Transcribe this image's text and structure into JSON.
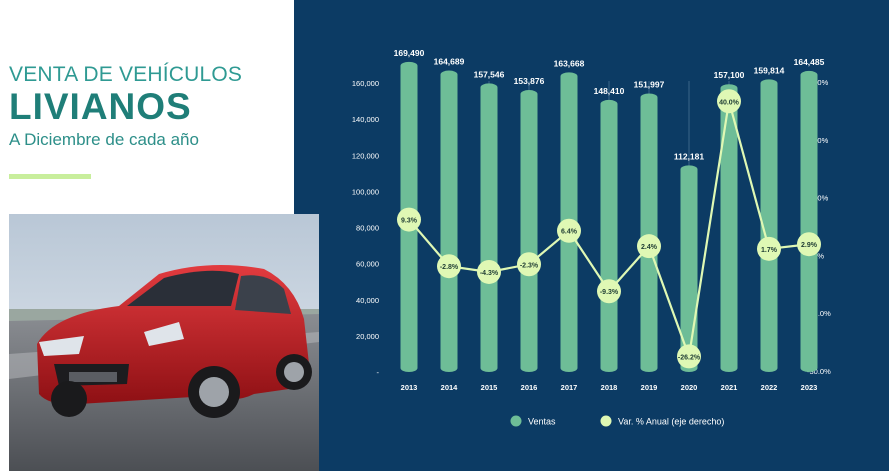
{
  "header": {
    "title_line1": "VENTA DE VEHÍCULOS",
    "title_line2": "LIVIANOS",
    "subtitle": "A Diciembre de cada año"
  },
  "colors": {
    "panel_bg": "#0c3b64",
    "title_teal": "#2f9a93",
    "title_dark_teal": "#1f7e78",
    "subtitle_teal": "#2d8f89",
    "accent": "#c8ee9c",
    "bar": "#6ebd97",
    "line": "#dff8b4",
    "grid": "#3a6488",
    "text": "#ffffff"
  },
  "photo": {
    "icon": "red-hatchback-car-photo"
  },
  "chart_data": {
    "type": "bar",
    "categories": [
      "2013",
      "2014",
      "2015",
      "2016",
      "2017",
      "2018",
      "2019",
      "2020",
      "2021",
      "2022",
      "2023"
    ],
    "series": [
      {
        "name": "Ventas",
        "type": "bar",
        "axis": "left",
        "values": [
          169490,
          164689,
          157546,
          153876,
          163668,
          148410,
          151997,
          112181,
          157100,
          159814,
          164485
        ],
        "labels": [
          "169,490",
          "164,689",
          "157,546",
          "153,876",
          "163,668",
          "148,410",
          "151,997",
          "112,181",
          "157,100",
          "159,814",
          "164,485"
        ]
      },
      {
        "name": "Var. % Anual (eje derecho)",
        "type": "line",
        "axis": "right",
        "values": [
          9.3,
          -2.8,
          -4.3,
          -2.3,
          6.4,
          -9.3,
          2.4,
          -26.2,
          40.0,
          1.7,
          2.9
        ],
        "labels": [
          "9.3%",
          "-2.8%",
          "-4.3%",
          "-2.3%",
          "6.4%",
          "-9.3%",
          "2.4%",
          "-26.2%",
          "40.0%",
          "1.7%",
          "2.9%"
        ]
      }
    ],
    "y_left": {
      "range": [
        0,
        160000
      ],
      "ticks": [
        0,
        20000,
        40000,
        60000,
        80000,
        100000,
        120000,
        140000,
        160000
      ],
      "tick_labels": [
        "-",
        "20,000",
        "40,000",
        "60,000",
        "80,000",
        "100,000",
        "120,000",
        "140,000",
        "160,000"
      ]
    },
    "y_right": {
      "range": [
        -30,
        45
      ],
      "ticks": [
        -30,
        -15,
        0,
        15,
        30,
        45
      ],
      "tick_labels": [
        "-30.0%",
        "-15.0%",
        "0.0%",
        "15.0%",
        "30.0%",
        "45.0%"
      ]
    },
    "grid": "vertical",
    "legend": "bottom"
  }
}
